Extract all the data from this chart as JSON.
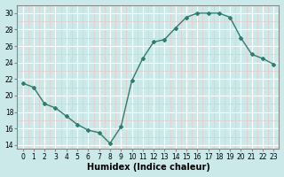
{
  "x": [
    0,
    1,
    2,
    3,
    4,
    5,
    6,
    7,
    8,
    9,
    10,
    11,
    12,
    13,
    14,
    15,
    16,
    17,
    18,
    19,
    20,
    21,
    22,
    23
  ],
  "y": [
    21.5,
    21.0,
    19.0,
    18.5,
    17.5,
    16.5,
    15.8,
    15.5,
    14.2,
    16.2,
    21.8,
    24.5,
    26.5,
    26.8,
    28.2,
    29.5,
    30.0,
    30.0,
    30.0,
    29.5,
    27.0,
    25.0,
    24.5,
    23.8
  ],
  "line_color": "#2e7d6e",
  "marker": "D",
  "markersize": 2.0,
  "linewidth": 1.0,
  "xlabel": "Humidex (Indice chaleur)",
  "ylabel": "",
  "xlim": [
    -0.5,
    23.5
  ],
  "ylim": [
    13.5,
    31.0
  ],
  "yticks": [
    14,
    16,
    18,
    20,
    22,
    24,
    26,
    28,
    30
  ],
  "xticks": [
    0,
    1,
    2,
    3,
    4,
    5,
    6,
    7,
    8,
    9,
    10,
    11,
    12,
    13,
    14,
    15,
    16,
    17,
    18,
    19,
    20,
    21,
    22,
    23
  ],
  "bg_color": "#cce9e9",
  "grid_color_major": "#ffffff",
  "grid_color_minor": "#e8c8c8",
  "grid_linewidth": 0.5,
  "label_fontsize": 7,
  "tick_fontsize": 5.5,
  "spine_color": "#888888"
}
